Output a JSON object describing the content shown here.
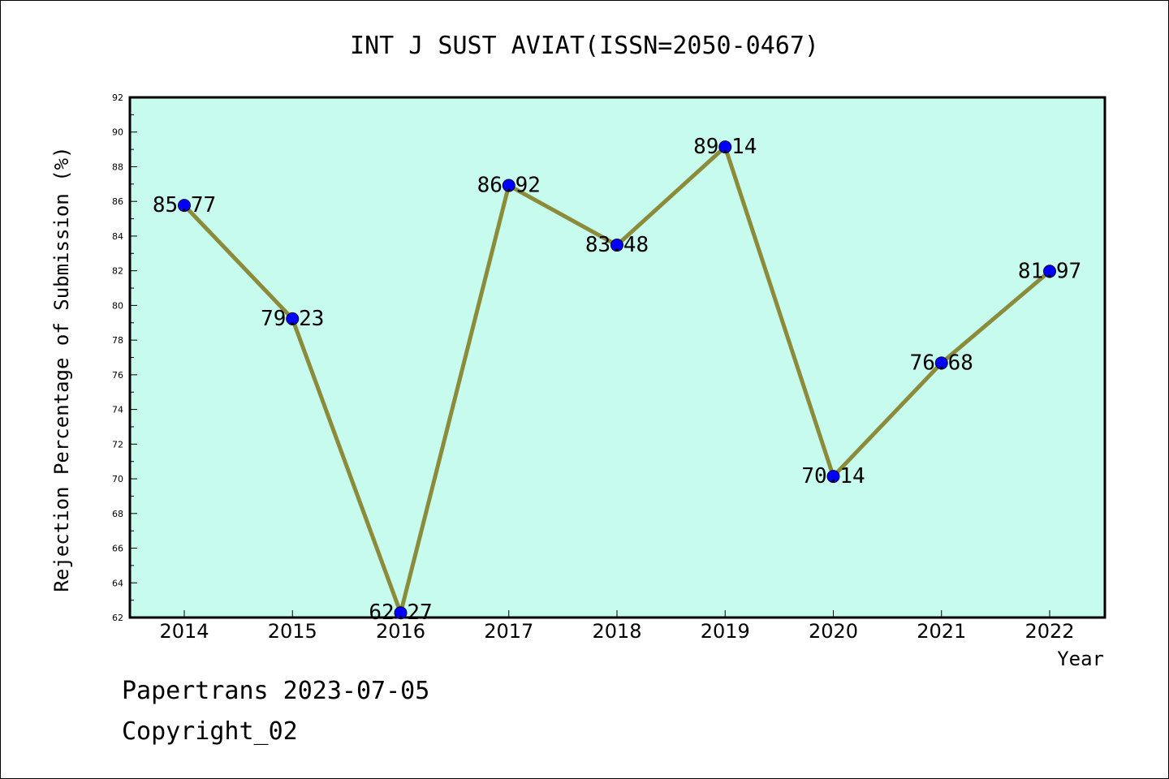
{
  "colors": {
    "plot_background": "#c6fbee",
    "line": "#8b8b3a",
    "marker": "#0000ff",
    "axis": "#000000"
  },
  "chart_data": {
    "type": "line",
    "title": "INT J SUST AVIAT(ISSN=2050-0467)",
    "xlabel": "Year",
    "ylabel": "Rejection Percentage of Submission (%)",
    "categories": [
      "2014",
      "2015",
      "2016",
      "2017",
      "2018",
      "2019",
      "2020",
      "2021",
      "2022"
    ],
    "values": [
      85.77,
      79.23,
      62.27,
      86.92,
      83.48,
      89.14,
      70.14,
      76.68,
      81.97
    ],
    "data_labels": [
      "85.77",
      "79.23",
      "62.27",
      "86.92",
      "83.48",
      "89.14",
      "70.14",
      "76.68",
      "81.97"
    ],
    "ylim": [
      62,
      92
    ],
    "yticks": [
      "62",
      "64",
      "66",
      "68",
      "70",
      "72",
      "74",
      "76",
      "78",
      "80",
      "82",
      "84",
      "86",
      "88",
      "90",
      "92"
    ],
    "grid": false,
    "legend": "none"
  },
  "footer": {
    "source": "Papertrans 2023-07-05",
    "copyright": "Copyright_02"
  }
}
